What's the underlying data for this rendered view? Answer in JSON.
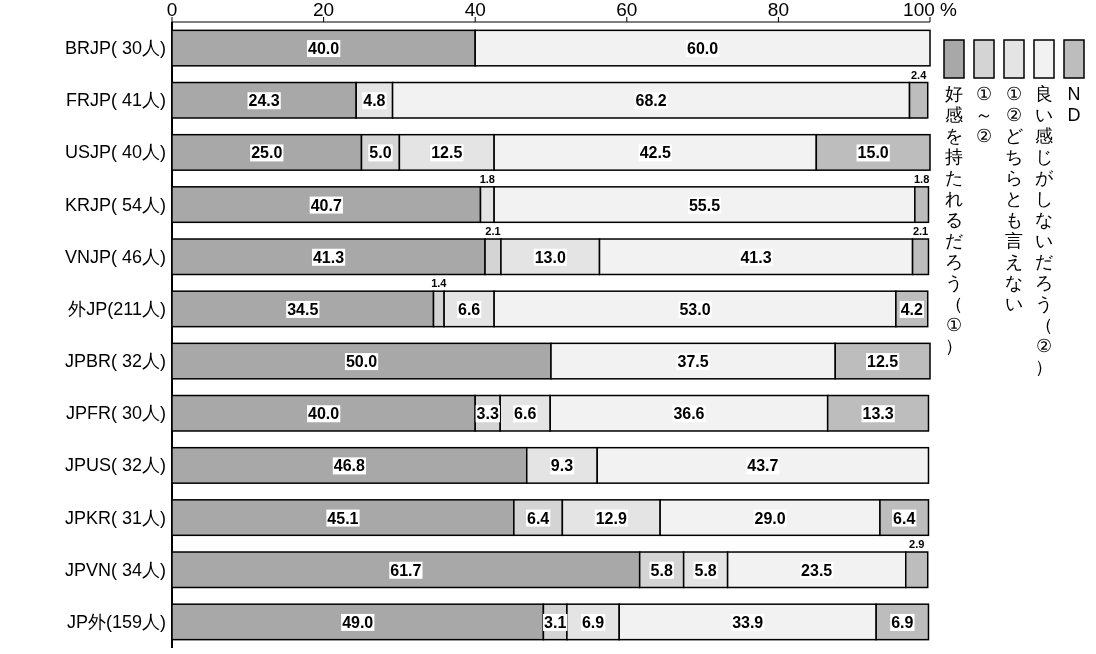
{
  "chart_data": {
    "type": "bar",
    "orientation": "horizontal",
    "stacked": true,
    "legend": "right",
    "grid": false,
    "categories": [
      "BRJP( 30人)",
      "FRJP( 41人)",
      "USJP( 40人)",
      "KRJP( 54人)",
      "VNJP( 46人)",
      "外JP(211人)",
      "JPBR( 32人)",
      "JPFR( 30人)",
      "JPUS( 32人)",
      "JPKR( 31人)",
      "JPVN( 34人)",
      "JP外(159人)"
    ],
    "xlim": [
      0,
      100
    ],
    "xticks": [
      0,
      20,
      40,
      60,
      80,
      {
        "value": 100,
        "label": "100 %"
      }
    ],
    "series": [
      {
        "name": "好感を持たれるだろう（①）",
        "color": "#a8a8a8",
        "values": [
          40.0,
          24.3,
          25.0,
          40.7,
          41.3,
          34.5,
          50.0,
          40.0,
          46.8,
          45.1,
          61.7,
          49.0
        ],
        "value_labels": [
          "40.0",
          "24.3",
          "25.0",
          "40.7",
          "41.3",
          "34.5",
          "50.0",
          "40.0",
          "46.8",
          "45.1",
          "61.7",
          "49.0"
        ]
      },
      {
        "name": "①～②",
        "color": "#d4d4d4",
        "values": [
          null,
          null,
          5.0,
          null,
          2.1,
          1.4,
          null,
          3.3,
          null,
          6.4,
          5.8,
          3.1
        ],
        "value_labels": [
          null,
          null,
          "5.0",
          null,
          "2.1",
          "1.4",
          null,
          "3.3",
          null,
          "6.4",
          "5.8",
          "3.1"
        ]
      },
      {
        "name": "①②どちらとも言えない",
        "color": "#e4e4e4",
        "values": [
          null,
          4.8,
          12.5,
          1.8,
          13.0,
          6.6,
          null,
          6.6,
          9.3,
          12.9,
          5.8,
          6.9
        ],
        "value_labels": [
          null,
          "4.8",
          "12.5",
          "1.8",
          "13.0",
          "6.6",
          null,
          "6.6",
          "9.3",
          "12.9",
          "5.8",
          "6.9"
        ]
      },
      {
        "name": "良い感じがしないだろう（②）",
        "color": "#f2f2f2",
        "values": [
          60.0,
          68.2,
          42.5,
          55.5,
          41.3,
          53.0,
          37.5,
          36.6,
          43.7,
          29.0,
          23.5,
          33.9
        ],
        "value_labels": [
          "60.0",
          "68.2",
          "42.5",
          "55.5",
          "41.3",
          "53.0",
          "37.5",
          "36.6",
          "43.7",
          "29.0",
          "23.5",
          "33.9"
        ]
      },
      {
        "name": "ND",
        "color": "#bdbdbd",
        "values": [
          null,
          2.4,
          15.0,
          1.8,
          2.1,
          4.2,
          12.5,
          13.3,
          null,
          6.4,
          2.9,
          6.9
        ],
        "value_labels": [
          null,
          "2.4",
          "15.0",
          "1.8",
          "2.1",
          "4.2",
          "12.5",
          "13.3",
          null,
          "6.4",
          "2.9",
          "6.9"
        ]
      }
    ]
  }
}
